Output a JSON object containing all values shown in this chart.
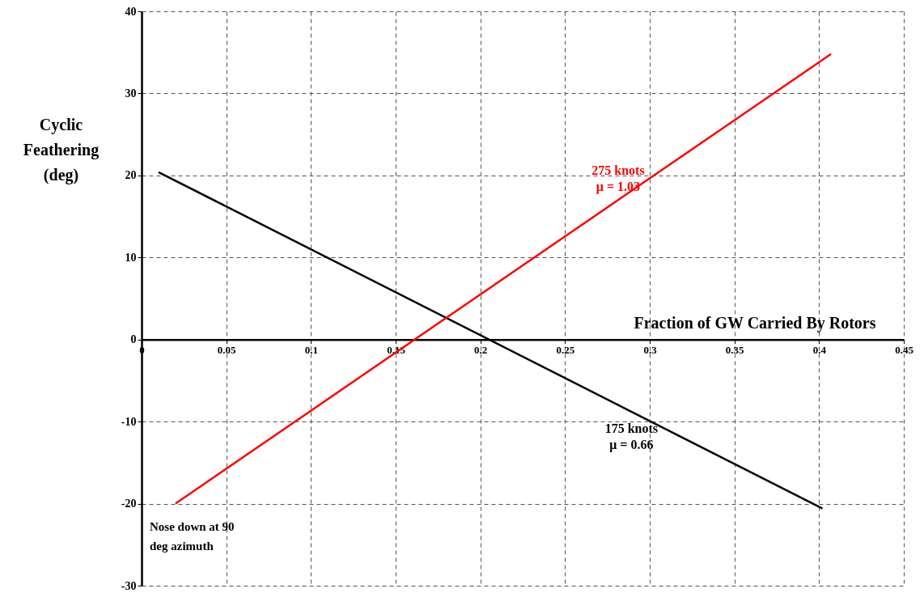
{
  "chart_data": {
    "type": "line",
    "xlabel": "Fraction of GW Carried By Rotors",
    "ylabel": "Cyclic\nFeathering\n\n(deg)",
    "xlim": [
      0,
      0.45
    ],
    "xticks": [
      0,
      0.05,
      0.1,
      0.15,
      0.2,
      0.25,
      0.3,
      0.35,
      0.4,
      0.45
    ],
    "ylim": [
      -30,
      40
    ],
    "yticks": [
      -30,
      -20,
      -10,
      0,
      10,
      20,
      30,
      40
    ],
    "grid": true,
    "line_style": "solid",
    "marker": "none",
    "series": [
      {
        "name": "175 knots\nμ = 0.66",
        "color": "#000000",
        "x": [
          0.01,
          0.402
        ],
        "values": [
          20.4,
          -20.6
        ]
      },
      {
        "name": "275 knots\nμ = 1.03",
        "color": "#ff0000",
        "x": [
          0.02,
          0.407
        ],
        "values": [
          -20.0,
          34.8
        ]
      }
    ],
    "annotations": [
      "Nose down at 90\ndeg azimuth"
    ]
  }
}
